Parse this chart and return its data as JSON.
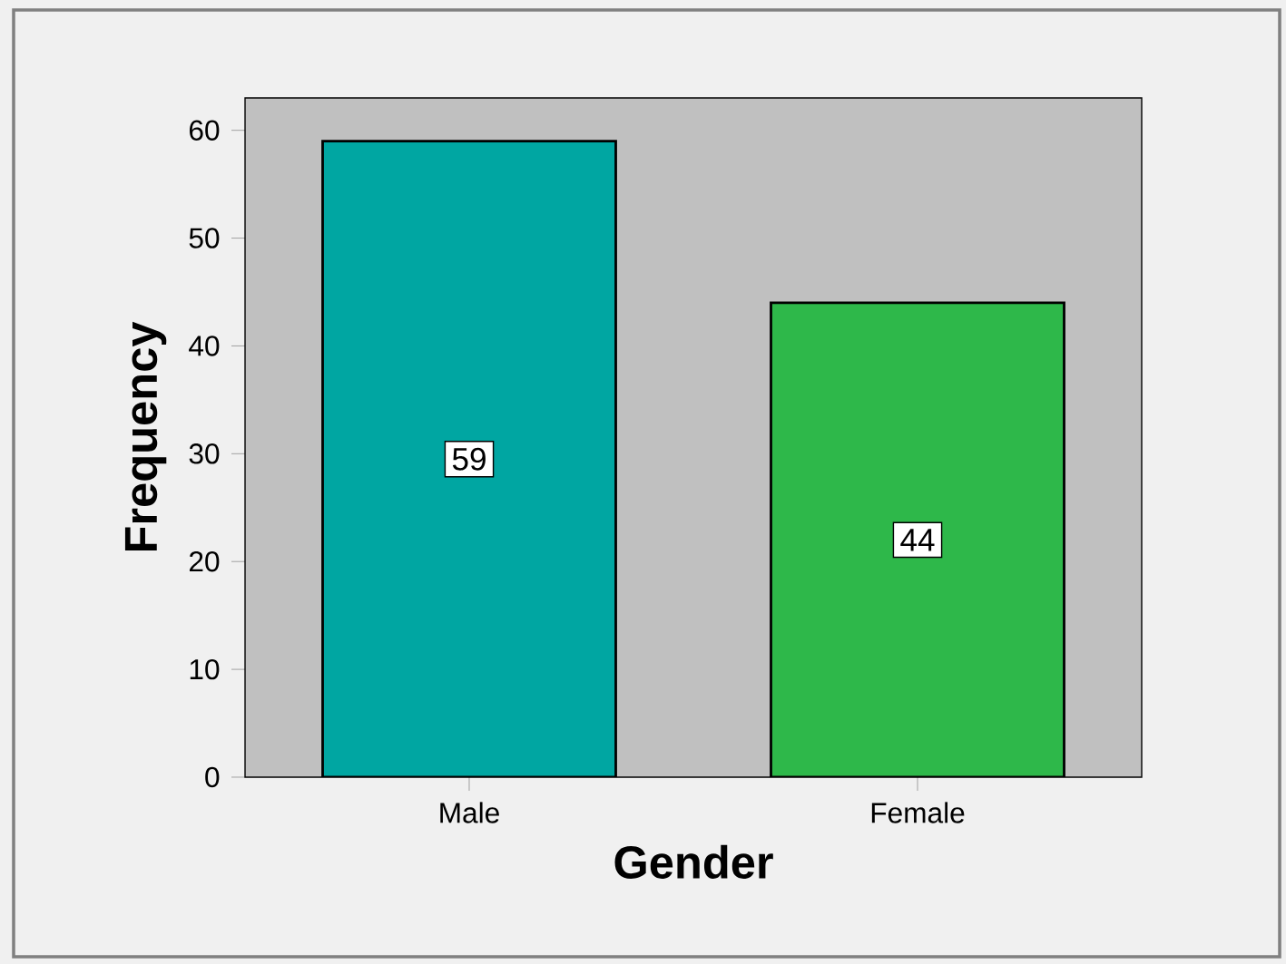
{
  "chart_data": {
    "type": "bar",
    "xlabel": "Gender",
    "ylabel": "Frequency",
    "categories": [
      "Male",
      "Female"
    ],
    "values": [
      59,
      44
    ],
    "colors": [
      "#00a6a2",
      "#2eb84a"
    ],
    "ylim": [
      0,
      63
    ],
    "yticks": [
      0,
      10,
      20,
      30,
      40,
      50,
      60
    ],
    "data_labels": true
  }
}
